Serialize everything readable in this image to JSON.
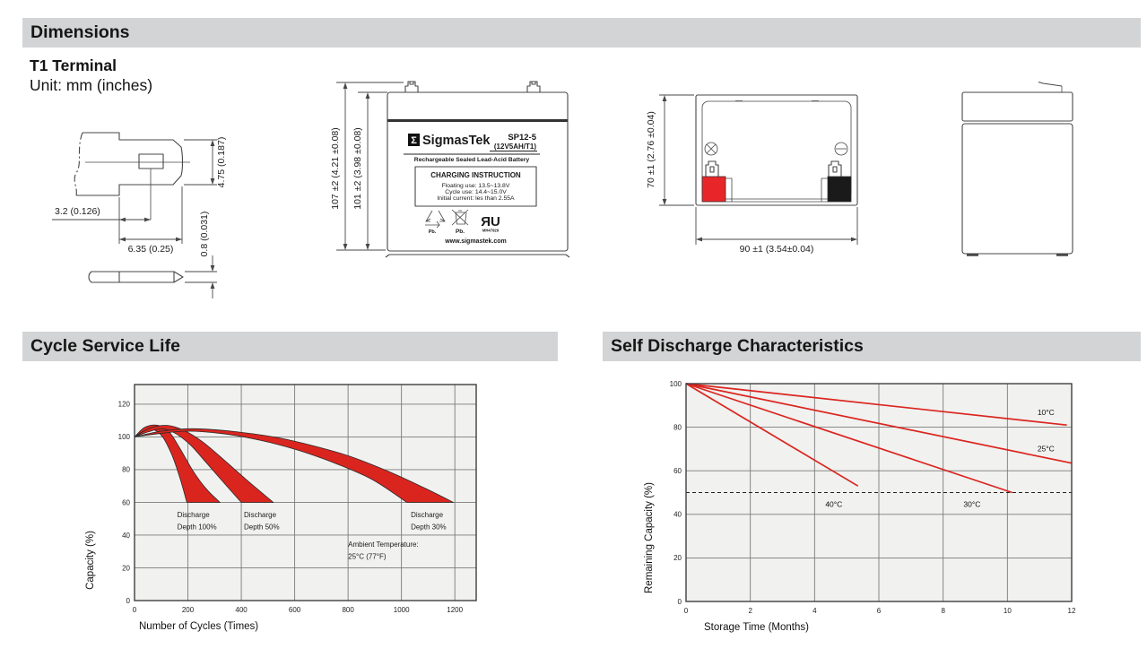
{
  "sections": {
    "dimensions": "Dimensions",
    "cycle": "Cycle Service Life",
    "self_discharge": "Self Discharge Characteristics"
  },
  "dimensions_block": {
    "terminal_type": "T1 Terminal",
    "unit": "Unit: mm (inches)",
    "terminal_drawing": {
      "height": "4.75 (0.187)",
      "hole_offset": "3.2 (0.126)",
      "width": "6.35 (0.25)",
      "thickness": "0.8 (0.031)"
    },
    "front_view": {
      "outer_height": "107 ±2 (4.21 ±0.08)",
      "inner_height": "101 ±2 (3.98 ±0.08)"
    },
    "top_view": {
      "height": "70 ±1 (2.76 ±0.04)",
      "width": "90 ±1 (3.54±0.04)"
    }
  },
  "battery_label": {
    "sigma": "Σ",
    "brand": "SigmasTek",
    "model": "SP12-5",
    "rating": "(12V5AH/T1)",
    "tagline": "Rechargeable Sealed Lead-Acid Battery",
    "charging_title": "CHARGING INSTRUCTION",
    "charging_lines": [
      "Floating use: 13.5~13.8V",
      "Cycle use: 14.4~15.0V",
      "Initial current: les than 2.55A"
    ],
    "pb_recycle": "Pb.",
    "pb_bin": "Pb.",
    "ul_mark": "ЯU",
    "ul_file": "MH47929",
    "website": "www.sigmastek.com"
  },
  "colors": {
    "accent_red": "#da251f",
    "terminal_red": "#e8262a",
    "terminal_black": "#1a1a1a",
    "header_bar": "#d3d4d5",
    "plot_bg": "#f1f1ef",
    "grid": "#7b7b7b",
    "axis": "#3f3f3f"
  },
  "chart_data": [
    {
      "type": "area",
      "title": "Cycle Service Life",
      "xlabel": "Number of Cycles (Times)",
      "ylabel": "Capacity (%)",
      "xlim": [
        0,
        1280
      ],
      "ylim": [
        0,
        132
      ],
      "xticks": [
        0,
        200,
        400,
        600,
        800,
        1000,
        1200
      ],
      "yticks": [
        0,
        20,
        40,
        60,
        80,
        100,
        120
      ],
      "grid": true,
      "legend_position": "none",
      "bands": [
        {
          "name": "Discharge Depth 100%",
          "upper": [
            [
              0,
              100
            ],
            [
              40,
              106
            ],
            [
              90,
              107
            ],
            [
              130,
              103
            ],
            [
              170,
              93
            ],
            [
              220,
              79
            ],
            [
              270,
              68
            ],
            [
              320,
              60
            ]
          ],
          "lower": [
            [
              0,
              100
            ],
            [
              35,
              103.5
            ],
            [
              70,
              104.5
            ],
            [
              105,
              100
            ],
            [
              140,
              89
            ],
            [
              170,
              75
            ],
            [
              196,
              60
            ]
          ]
        },
        {
          "name": "Discharge Depth 50%",
          "upper": [
            [
              0,
              100
            ],
            [
              60,
              105.5
            ],
            [
              125,
              107
            ],
            [
              185,
              104
            ],
            [
              255,
              97
            ],
            [
              335,
              86
            ],
            [
              425,
              73
            ],
            [
              520,
              60
            ]
          ],
          "lower": [
            [
              0,
              100
            ],
            [
              50,
              103
            ],
            [
              105,
              105
            ],
            [
              155,
              102
            ],
            [
              210,
              95
            ],
            [
              270,
              84
            ],
            [
              340,
              71
            ],
            [
              400,
              60
            ]
          ]
        },
        {
          "name": "Discharge Depth 30%",
          "upper": [
            [
              0,
              100
            ],
            [
              100,
              103.5
            ],
            [
              220,
              105
            ],
            [
              360,
              103.5
            ],
            [
              520,
              100
            ],
            [
              660,
              95
            ],
            [
              800,
              88.5
            ],
            [
              950,
              79
            ],
            [
              1090,
              68.5
            ],
            [
              1195,
              60
            ]
          ],
          "lower": [
            [
              0,
              100
            ],
            [
              90,
              102
            ],
            [
              200,
              103.5
            ],
            [
              330,
              102
            ],
            [
              470,
              98
            ],
            [
              610,
              92
            ],
            [
              750,
              84
            ],
            [
              890,
              74
            ],
            [
              1020,
              60
            ]
          ]
        }
      ],
      "annotations": [
        {
          "lines": [
            "Discharge",
            "Depth 100%"
          ],
          "x": 160,
          "y": 51
        },
        {
          "lines": [
            "Discharge",
            "Depth 50%"
          ],
          "x": 410,
          "y": 51
        },
        {
          "lines": [
            "Discharge",
            "Depth 30%"
          ],
          "x": 1035,
          "y": 51
        },
        {
          "lines": [
            "Ambient Temperature:",
            "25°C (77°F)"
          ],
          "x": 800,
          "y": 33
        }
      ]
    },
    {
      "type": "line",
      "title": "Self Discharge Characteristics",
      "xlabel": "Storage Time (Months)",
      "ylabel": "Remaining Capacity (%)",
      "xlim": [
        0,
        12
      ],
      "ylim": [
        0,
        100
      ],
      "xticks": [
        0,
        2,
        4,
        6,
        8,
        10,
        12
      ],
      "yticks": [
        0,
        20,
        40,
        60,
        80,
        100
      ],
      "grid": true,
      "legend_position": "inline-labels",
      "series": [
        {
          "name": "10°C",
          "points": [
            [
              0,
              100
            ],
            [
              11.85,
              81
            ]
          ],
          "label": {
            "x": 11.2,
            "y": 85.5
          }
        },
        {
          "name": "25°C",
          "points": [
            [
              0,
              100
            ],
            [
              12,
              63.5
            ]
          ],
          "label": {
            "x": 11.2,
            "y": 69
          }
        },
        {
          "name": "30°C",
          "points": [
            [
              0,
              100
            ],
            [
              10.15,
              50
            ]
          ],
          "label": {
            "x": 8.9,
            "y": 43.5
          }
        },
        {
          "name": "40°C",
          "points": [
            [
              0,
              100
            ],
            [
              5.35,
              53
            ]
          ],
          "label": {
            "x": 4.6,
            "y": 43.5
          }
        }
      ],
      "reference_line": {
        "y": 50,
        "style": "dashed"
      }
    }
  ]
}
